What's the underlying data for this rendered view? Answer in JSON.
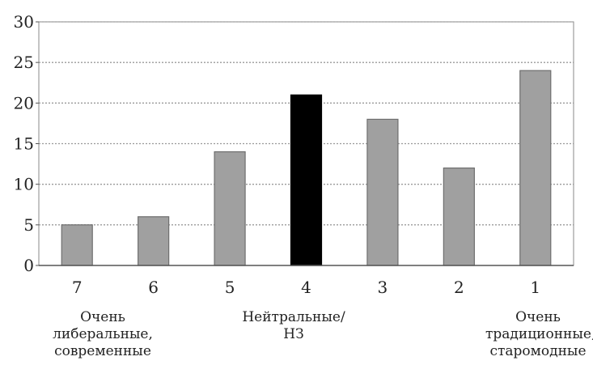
{
  "chart_data": {
    "type": "bar",
    "categories": [
      "7",
      "6",
      "5",
      "4",
      "3",
      "2",
      "1"
    ],
    "values": [
      5,
      6,
      14,
      21,
      18,
      12,
      24
    ],
    "highlight_index": 3,
    "colors": {
      "bar": "#a0a0a0",
      "highlight": "#000000",
      "grid": "#9a9a9a",
      "axis": "#555555",
      "frame": "#888888"
    },
    "ylim": [
      0,
      30
    ],
    "yticks": [
      "0",
      "5",
      "10",
      "15",
      "20",
      "25",
      "30"
    ],
    "grid": true,
    "annotations": {
      "left": [
        "Очень",
        "либеральные,",
        "современные"
      ],
      "middle": [
        "Нейтральные/",
        "НЗ"
      ],
      "right": [
        "Очень",
        "традиционные,",
        "старомодные"
      ]
    }
  }
}
